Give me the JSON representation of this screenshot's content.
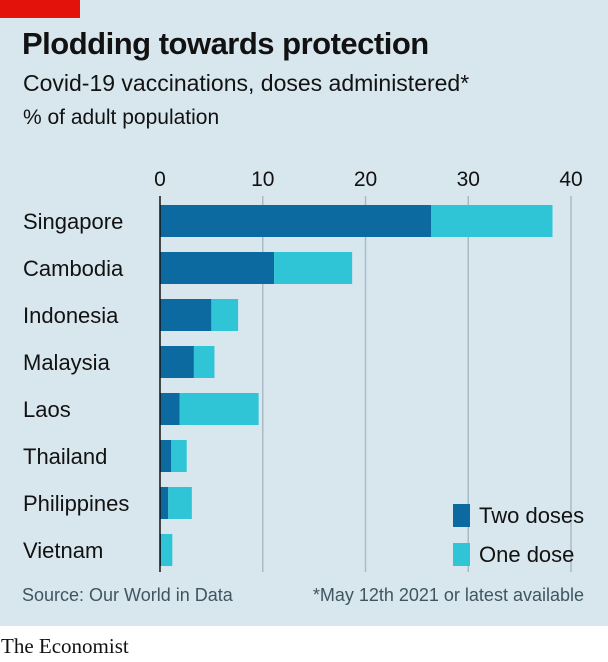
{
  "title": "Plodding towards protection",
  "subtitle": "Covid-19 vaccinations, doses administered*",
  "unit": "% of adult population",
  "source": "Source: Our World in Data",
  "footnote": "*May 12th 2021 or latest available",
  "brand": "The Economist",
  "colors": {
    "two_doses": "#0c6aa0",
    "one_dose": "#2fc5d6",
    "background": "#d8e6ee",
    "brand_red": "#e3120b"
  },
  "chart_data": {
    "type": "bar",
    "orientation": "horizontal",
    "stacked": true,
    "categories": [
      "Singapore",
      "Cambodia",
      "Indonesia",
      "Malaysia",
      "Laos",
      "Thailand",
      "Philippines",
      "Vietnam"
    ],
    "series": [
      {
        "name": "Two doses",
        "values": [
          26.4,
          11.1,
          5.0,
          3.3,
          1.9,
          1.1,
          0.8,
          0.1
        ]
      },
      {
        "name": "One dose",
        "values": [
          11.8,
          7.6,
          2.6,
          2.0,
          7.7,
          1.5,
          2.3,
          1.1
        ]
      }
    ],
    "xlim": [
      0,
      40
    ],
    "xticks": [
      0,
      10,
      20,
      30,
      40
    ],
    "xaxis_position": "top",
    "grid": true,
    "legend_position": "bottom-right"
  }
}
